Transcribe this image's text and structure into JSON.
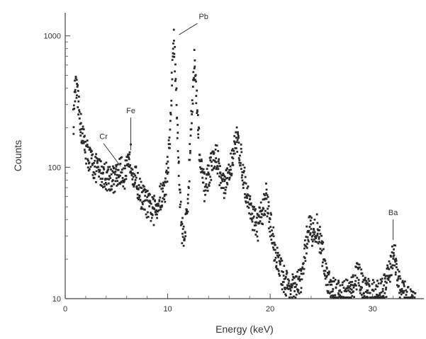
{
  "chart_data": {
    "type": "scatter",
    "title": "",
    "xlabel": "Energy (keV)",
    "ylabel": "Counts",
    "xlim": [
      0,
      35
    ],
    "ylim": [
      10,
      1500
    ],
    "y_scale": "log",
    "grid": false,
    "legend": "none",
    "x_ticks": [
      {
        "v": 0,
        "label": "0"
      },
      {
        "v": 10,
        "label": "10"
      },
      {
        "v": 20,
        "label": "20"
      },
      {
        "v": 30,
        "label": "30"
      }
    ],
    "y_ticks": [
      {
        "v": 10,
        "label": "10"
      },
      {
        "v": 100,
        "label": "100"
      },
      {
        "v": 1000,
        "label": "1000"
      }
    ],
    "annotations": [
      {
        "label": "Pb",
        "x": 11.1,
        "y": 1020
      },
      {
        "label": "Fe",
        "x": 6.4,
        "y": 135
      },
      {
        "label": "Cr",
        "x": 5.4,
        "y": 102
      },
      {
        "label": "Ba",
        "x": 32.0,
        "y": 28
      }
    ],
    "peaks": [
      {
        "x": 10.55,
        "height": 900,
        "width": 0.3
      },
      {
        "x": 12.61,
        "height": 500,
        "width": 0.32
      },
      {
        "x": 14.76,
        "height": 60,
        "width": 0.4
      },
      {
        "x": 16.8,
        "height": 100,
        "width": 0.45
      },
      {
        "x": 19.6,
        "height": 28,
        "width": 0.45
      },
      {
        "x": 23.9,
        "height": 25,
        "width": 0.4
      },
      {
        "x": 24.8,
        "height": 20,
        "width": 0.35
      },
      {
        "x": 28.7,
        "height": 8,
        "width": 0.3
      },
      {
        "x": 32.1,
        "height": 12,
        "width": 0.28
      },
      {
        "x": 6.4,
        "height": 25,
        "width": 0.2
      },
      {
        "x": 5.4,
        "height": 8,
        "width": 0.18
      }
    ],
    "series": [
      {
        "values": [
          [
            0.8,
            220
          ],
          [
            1.0,
            420
          ],
          [
            1.2,
            330
          ],
          [
            1.4,
            250
          ],
          [
            1.6,
            190
          ],
          [
            1.8,
            160
          ],
          [
            2.0,
            140
          ],
          [
            2.2,
            125
          ],
          [
            2.4,
            115
          ],
          [
            2.6,
            108
          ],
          [
            2.8,
            102
          ],
          [
            3.0,
            98
          ],
          [
            3.2,
            95
          ],
          [
            3.4,
            92
          ],
          [
            3.6,
            90
          ],
          [
            3.8,
            88
          ],
          [
            4.0,
            86
          ],
          [
            4.2,
            85
          ],
          [
            4.4,
            84
          ],
          [
            4.6,
            82
          ],
          [
            4.8,
            80
          ],
          [
            5.0,
            84
          ],
          [
            5.4,
            95
          ],
          [
            5.8,
            88
          ],
          [
            6.2,
            100
          ],
          [
            6.4,
            118
          ],
          [
            6.6,
            95
          ],
          [
            7.0,
            75
          ],
          [
            7.4,
            62
          ],
          [
            7.8,
            55
          ],
          [
            8.2,
            50
          ],
          [
            8.6,
            46
          ],
          [
            9.0,
            52
          ],
          [
            9.4,
            60
          ],
          [
            9.8,
            70
          ],
          [
            10.2,
            160
          ],
          [
            10.5,
            700
          ],
          [
            10.6,
            1000
          ],
          [
            10.8,
            420
          ],
          [
            11.1,
            90
          ],
          [
            11.4,
            32
          ],
          [
            11.7,
            33
          ],
          [
            12.0,
            60
          ],
          [
            12.3,
            230
          ],
          [
            12.6,
            650
          ],
          [
            12.9,
            260
          ],
          [
            13.2,
            100
          ],
          [
            13.6,
            70
          ],
          [
            14.0,
            90
          ],
          [
            14.4,
            110
          ],
          [
            14.8,
            120
          ],
          [
            15.2,
            80
          ],
          [
            15.6,
            70
          ],
          [
            16.0,
            90
          ],
          [
            16.4,
            130
          ],
          [
            16.8,
            165
          ],
          [
            17.2,
            110
          ],
          [
            17.6,
            70
          ],
          [
            18.0,
            52
          ],
          [
            18.4,
            40
          ],
          [
            18.8,
            35
          ],
          [
            19.2,
            45
          ],
          [
            19.6,
            60
          ],
          [
            20.0,
            38
          ],
          [
            20.4,
            25
          ],
          [
            20.8,
            18
          ],
          [
            21.2,
            15
          ],
          [
            21.6,
            13
          ],
          [
            22.0,
            12
          ],
          [
            22.4,
            12
          ],
          [
            22.8,
            13
          ],
          [
            23.2,
            16
          ],
          [
            23.6,
            30
          ],
          [
            23.9,
            38
          ],
          [
            24.2,
            30
          ],
          [
            24.6,
            35
          ],
          [
            25.0,
            25
          ],
          [
            25.4,
            16
          ],
          [
            25.8,
            13
          ],
          [
            26.2,
            12
          ],
          [
            26.6,
            11
          ],
          [
            27.0,
            11
          ],
          [
            27.4,
            11
          ],
          [
            27.8,
            11
          ],
          [
            28.2,
            13
          ],
          [
            28.6,
            16
          ],
          [
            28.9,
            13
          ],
          [
            29.4,
            11
          ],
          [
            30.0,
            11
          ],
          [
            30.6,
            11
          ],
          [
            31.2,
            12
          ],
          [
            31.8,
            18
          ],
          [
            32.1,
            24
          ],
          [
            32.4,
            15
          ],
          [
            32.8,
            11
          ],
          [
            33.5,
            10
          ],
          [
            34.5,
            10
          ]
        ]
      }
    ]
  }
}
